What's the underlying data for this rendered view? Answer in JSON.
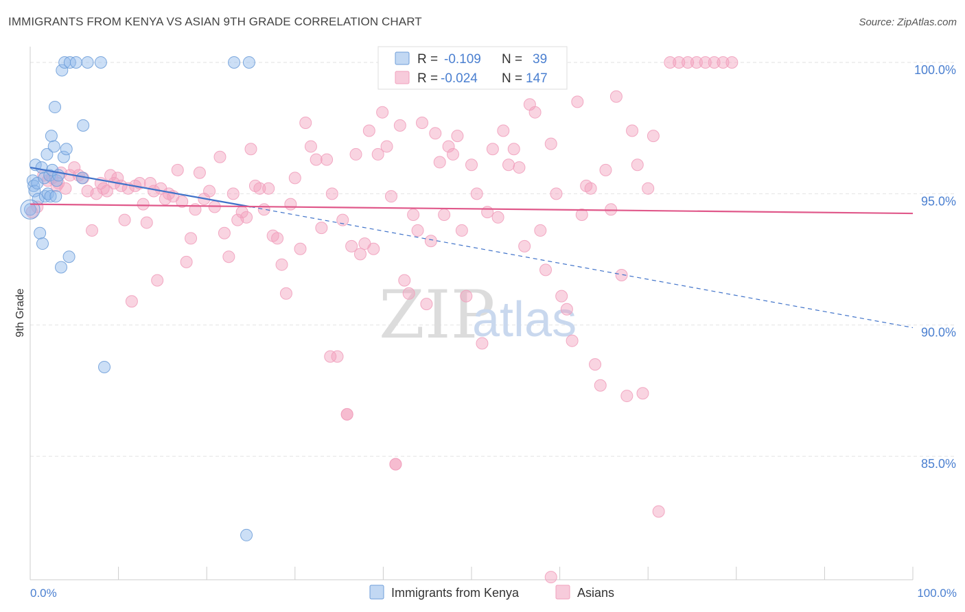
{
  "header": {
    "title": "IMMIGRANTS FROM KENYA VS ASIAN 9TH GRADE CORRELATION CHART",
    "source": "Source: ZipAtlas.com"
  },
  "watermark": {
    "zip": "ZIP",
    "atlas": "atlas"
  },
  "colors": {
    "blue": "#8fb8ea",
    "blue_line": "#3f72c9",
    "pink": "#f1a0bd",
    "pink_line": "#e0588a",
    "axis_text": "#4a7fd0",
    "grid": "#e2e2e2"
  },
  "chart_data": {
    "type": "scatter",
    "title": "IMMIGRANTS FROM KENYA VS ASIAN 9TH GRADE CORRELATION CHART",
    "xlabel": "",
    "ylabel": "9th Grade",
    "xlim": [
      0,
      100
    ],
    "ylim": [
      80.3,
      100.6
    ],
    "x_tick_labels": [
      "0.0%",
      "100.0%"
    ],
    "y_ticks": [
      85,
      90,
      95,
      100
    ],
    "y_tick_labels": [
      "85.0%",
      "90.0%",
      "95.0%",
      "100.0%"
    ],
    "grid": true,
    "legend": {
      "position": "top-center",
      "entries": [
        {
          "r_label": "R =",
          "r_value": "-0.109",
          "n_label": "N =",
          "n_value": "39"
        },
        {
          "r_label": "R =",
          "r_value": "-0.024",
          "n_label": "N =",
          "n_value": "147"
        }
      ]
    },
    "bottom_legend": [
      "Immigrants from Kenya",
      "Asians"
    ],
    "series": [
      {
        "name": "Immigrants from Kenya",
        "color": "#8fb8ea",
        "trend": {
          "x": [
            0,
            25,
            100
          ],
          "y": [
            96.0,
            94.5,
            89.9
          ],
          "solid_until": 25
        },
        "points": [
          [
            0.0,
            94.4
          ],
          [
            0.3,
            95.5
          ],
          [
            0.4,
            95.3
          ],
          [
            0.5,
            95.1
          ],
          [
            0.6,
            96.1
          ],
          [
            0.8,
            95.4
          ],
          [
            0.9,
            94.8
          ],
          [
            1.1,
            93.5
          ],
          [
            1.3,
            96.0
          ],
          [
            1.4,
            93.1
          ],
          [
            1.6,
            95.6
          ],
          [
            1.7,
            94.9
          ],
          [
            1.9,
            96.5
          ],
          [
            2.0,
            95.0
          ],
          [
            2.2,
            95.7
          ],
          [
            2.3,
            94.9
          ],
          [
            2.4,
            97.2
          ],
          [
            2.5,
            95.9
          ],
          [
            2.7,
            96.8
          ],
          [
            2.8,
            98.3
          ],
          [
            2.9,
            94.9
          ],
          [
            3.0,
            95.5
          ],
          [
            3.2,
            95.7
          ],
          [
            3.5,
            92.2
          ],
          [
            3.6,
            99.7
          ],
          [
            3.8,
            96.4
          ],
          [
            3.9,
            100.0
          ],
          [
            4.1,
            96.7
          ],
          [
            4.4,
            92.6
          ],
          [
            4.5,
            100.0
          ],
          [
            5.2,
            100.0
          ],
          [
            5.9,
            95.6
          ],
          [
            6.0,
            97.6
          ],
          [
            6.5,
            100.0
          ],
          [
            8.0,
            100.0
          ],
          [
            8.4,
            88.4
          ],
          [
            23.1,
            100.0
          ],
          [
            24.5,
            82.0
          ],
          [
            24.8,
            100.0
          ]
        ]
      },
      {
        "name": "Asians",
        "color": "#f1a0bd",
        "trend": {
          "x": [
            0,
            100
          ],
          "y": [
            94.6,
            94.25
          ]
        },
        "points": [
          [
            0.2,
            94.3
          ],
          [
            0.8,
            94.5
          ],
          [
            1.5,
            95.7
          ],
          [
            2.0,
            95.5
          ],
          [
            2.5,
            95.6
          ],
          [
            3.0,
            95.3
          ],
          [
            3.2,
            95.4
          ],
          [
            3.5,
            95.8
          ],
          [
            4.0,
            95.2
          ],
          [
            4.5,
            95.7
          ],
          [
            5.0,
            96.0
          ],
          [
            5.5,
            95.7
          ],
          [
            6.0,
            95.6
          ],
          [
            6.5,
            95.1
          ],
          [
            7.0,
            93.6
          ],
          [
            7.5,
            95.0
          ],
          [
            8.0,
            95.4
          ],
          [
            8.3,
            95.2
          ],
          [
            8.7,
            95.1
          ],
          [
            9.1,
            95.7
          ],
          [
            9.5,
            95.4
          ],
          [
            9.9,
            95.6
          ],
          [
            10.3,
            95.3
          ],
          [
            10.7,
            94.0
          ],
          [
            11.1,
            95.2
          ],
          [
            11.5,
            90.9
          ],
          [
            11.9,
            95.3
          ],
          [
            12.4,
            95.4
          ],
          [
            12.8,
            94.6
          ],
          [
            13.2,
            93.9
          ],
          [
            13.6,
            95.4
          ],
          [
            14.0,
            95.1
          ],
          [
            14.4,
            91.7
          ],
          [
            14.8,
            95.2
          ],
          [
            15.3,
            94.8
          ],
          [
            15.7,
            95.0
          ],
          [
            16.2,
            94.9
          ],
          [
            16.7,
            95.9
          ],
          [
            17.2,
            94.7
          ],
          [
            17.7,
            92.4
          ],
          [
            18.2,
            93.3
          ],
          [
            18.7,
            94.4
          ],
          [
            19.2,
            95.8
          ],
          [
            19.7,
            94.8
          ],
          [
            20.3,
            95.1
          ],
          [
            20.9,
            94.5
          ],
          [
            21.5,
            96.4
          ],
          [
            22.0,
            93.5
          ],
          [
            22.5,
            92.6
          ],
          [
            23.0,
            95.0
          ],
          [
            23.5,
            94.0
          ],
          [
            24.0,
            94.3
          ],
          [
            24.5,
            94.1
          ],
          [
            25.0,
            96.7
          ],
          [
            25.5,
            95.3
          ],
          [
            26.0,
            95.2
          ],
          [
            26.5,
            94.4
          ],
          [
            27.0,
            95.2
          ],
          [
            27.5,
            93.4
          ],
          [
            28.0,
            93.3
          ],
          [
            28.5,
            92.3
          ],
          [
            29.0,
            91.2
          ],
          [
            29.5,
            94.6
          ],
          [
            30.0,
            95.6
          ],
          [
            30.6,
            92.9
          ],
          [
            31.2,
            97.7
          ],
          [
            31.8,
            96.8
          ],
          [
            32.4,
            96.3
          ],
          [
            33.0,
            93.7
          ],
          [
            33.6,
            96.3
          ],
          [
            34.2,
            95.0
          ],
          [
            34.8,
            88.8
          ],
          [
            35.4,
            94.0
          ],
          [
            35.9,
            86.6
          ],
          [
            36.4,
            93.0
          ],
          [
            36.9,
            96.5
          ],
          [
            37.4,
            92.7
          ],
          [
            37.9,
            93.1
          ],
          [
            38.4,
            97.4
          ],
          [
            38.9,
            92.9
          ],
          [
            39.4,
            96.5
          ],
          [
            39.9,
            98.1
          ],
          [
            40.4,
            96.8
          ],
          [
            40.9,
            94.9
          ],
          [
            41.4,
            84.7
          ],
          [
            41.9,
            97.6
          ],
          [
            42.4,
            91.7
          ],
          [
            42.9,
            91.2
          ],
          [
            43.4,
            94.2
          ],
          [
            43.9,
            93.6
          ],
          [
            44.4,
            97.7
          ],
          [
            44.9,
            90.8
          ],
          [
            45.4,
            93.2
          ],
          [
            45.9,
            97.3
          ],
          [
            46.4,
            96.2
          ],
          [
            46.9,
            94.2
          ],
          [
            47.4,
            96.8
          ],
          [
            47.9,
            96.5
          ],
          [
            48.4,
            97.2
          ],
          [
            48.9,
            93.6
          ],
          [
            49.4,
            91.1
          ],
          [
            50.0,
            96.1
          ],
          [
            50.6,
            95.0
          ],
          [
            51.2,
            89.3
          ],
          [
            51.8,
            94.3
          ],
          [
            52.4,
            96.7
          ],
          [
            53.0,
            94.1
          ],
          [
            53.6,
            97.4
          ],
          [
            54.2,
            96.1
          ],
          [
            54.8,
            96.7
          ],
          [
            55.4,
            96.0
          ],
          [
            56.0,
            93.0
          ],
          [
            56.6,
            98.4
          ],
          [
            57.2,
            98.1
          ],
          [
            57.8,
            93.6
          ],
          [
            58.4,
            92.1
          ],
          [
            59.0,
            96.9
          ],
          [
            59.6,
            95.0
          ],
          [
            60.2,
            91.1
          ],
          [
            60.8,
            90.6
          ],
          [
            61.4,
            89.4
          ],
          [
            62.0,
            98.5
          ],
          [
            62.5,
            94.2
          ],
          [
            63.0,
            95.3
          ],
          [
            63.5,
            95.2
          ],
          [
            64.0,
            88.5
          ],
          [
            64.6,
            87.7
          ],
          [
            65.2,
            95.9
          ],
          [
            65.8,
            94.4
          ],
          [
            66.4,
            98.7
          ],
          [
            67.0,
            91.9
          ],
          [
            67.6,
            87.3
          ],
          [
            68.2,
            97.4
          ],
          [
            68.8,
            96.1
          ],
          [
            69.4,
            87.4
          ],
          [
            70.0,
            95.2
          ],
          [
            70.6,
            97.2
          ],
          [
            71.2,
            82.9
          ],
          [
            72.5,
            100.0
          ],
          [
            73.5,
            100.0
          ],
          [
            74.5,
            100.0
          ],
          [
            75.5,
            100.0
          ],
          [
            76.5,
            100.0
          ],
          [
            77.5,
            100.0
          ],
          [
            78.5,
            100.0
          ],
          [
            79.5,
            100.0
          ],
          [
            59.0,
            80.4
          ],
          [
            41.4,
            84.7
          ],
          [
            34.0,
            88.8
          ],
          [
            35.9,
            86.6
          ]
        ]
      }
    ]
  }
}
